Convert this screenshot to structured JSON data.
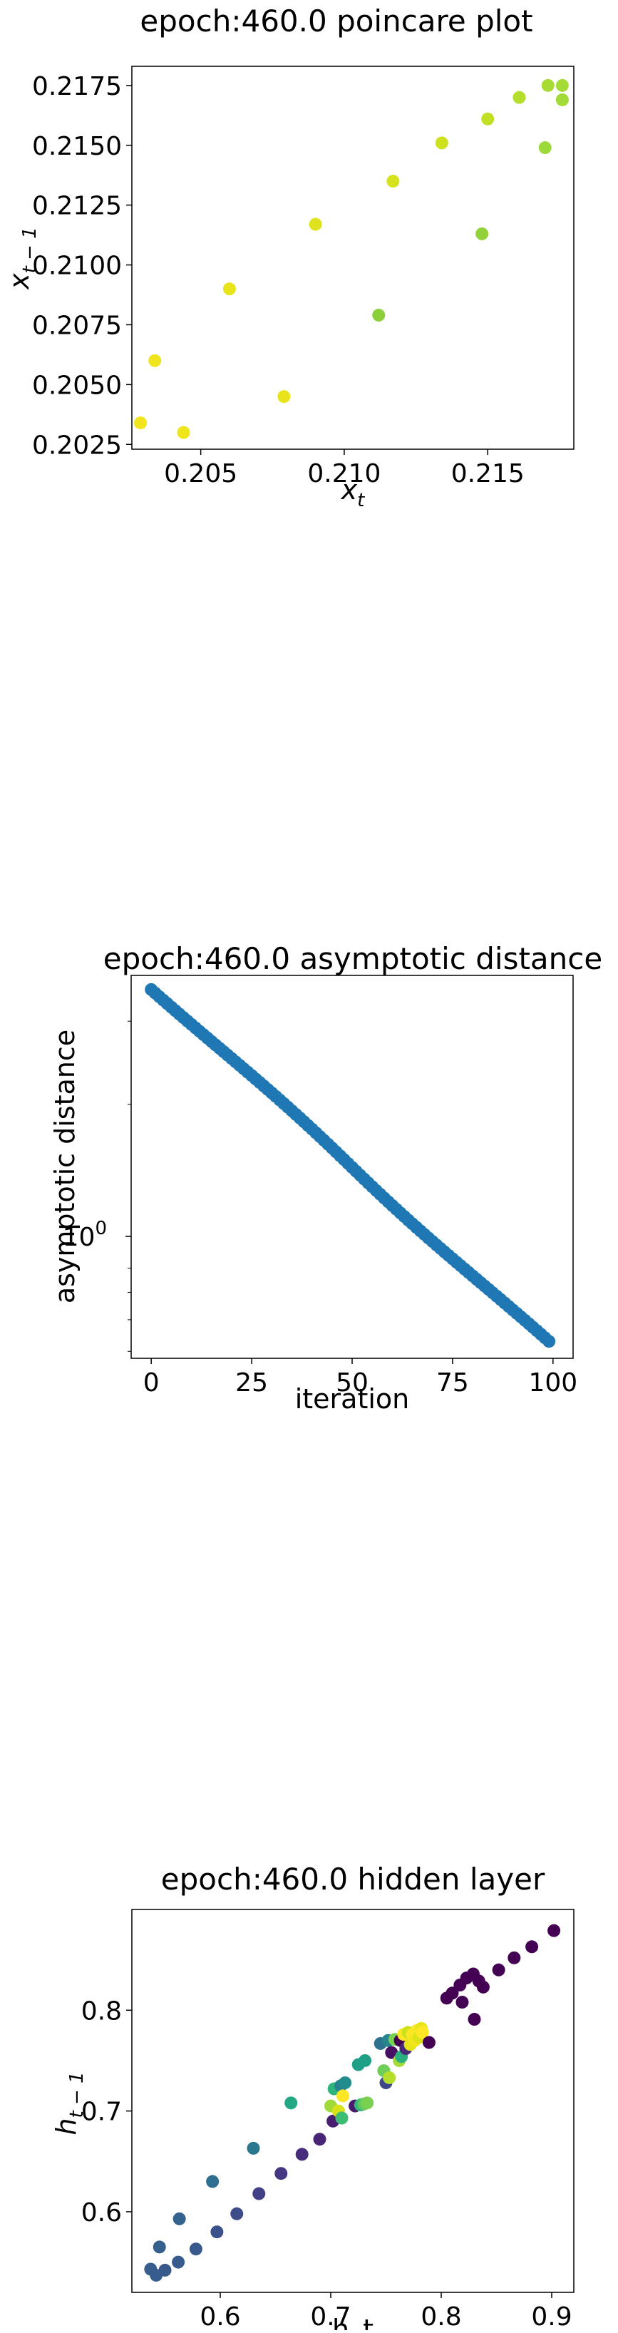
{
  "chart_data": [
    {
      "type": "scatter",
      "title": "epoch:460.0 poincare plot",
      "xlabel": "x_t",
      "ylabel": "x_{t-1}",
      "xlim": [
        0.2026,
        0.218
      ],
      "ylim": [
        0.2023,
        0.2183
      ],
      "xticks": [
        0.205,
        0.21,
        0.215
      ],
      "yticks": [
        0.2025,
        0.205,
        0.2075,
        0.21,
        0.2125,
        0.215,
        0.2175
      ],
      "xtick_labels": [
        "0.205",
        "0.210",
        "0.215"
      ],
      "ytick_labels": [
        "0.2025",
        "0.2050",
        "0.2075",
        "0.2100",
        "0.2125",
        "0.2150",
        "0.2175"
      ],
      "grid": false,
      "points": [
        {
          "x": 0.2029,
          "y": 0.2034,
          "color": "#f2e51e"
        },
        {
          "x": 0.2034,
          "y": 0.206,
          "color": "#f0e41f"
        },
        {
          "x": 0.2044,
          "y": 0.203,
          "color": "#eee51b"
        },
        {
          "x": 0.206,
          "y": 0.209,
          "color": "#e8e41a"
        },
        {
          "x": 0.2079,
          "y": 0.2045,
          "color": "#e8e31a"
        },
        {
          "x": 0.209,
          "y": 0.2117,
          "color": "#dfe21e"
        },
        {
          "x": 0.2112,
          "y": 0.2079,
          "color": "#8ccf3a"
        },
        {
          "x": 0.2117,
          "y": 0.2135,
          "color": "#d6e21b"
        },
        {
          "x": 0.2134,
          "y": 0.2151,
          "color": "#cde11d"
        },
        {
          "x": 0.2148,
          "y": 0.2113,
          "color": "#93d13a"
        },
        {
          "x": 0.215,
          "y": 0.2161,
          "color": "#c1df24"
        },
        {
          "x": 0.2161,
          "y": 0.217,
          "color": "#b5dd2b"
        },
        {
          "x": 0.217,
          "y": 0.2149,
          "color": "#9dd93a"
        },
        {
          "x": 0.2171,
          "y": 0.2175,
          "color": "#a8db34"
        },
        {
          "x": 0.2176,
          "y": 0.2175,
          "color": "#a5db36"
        },
        {
          "x": 0.2176,
          "y": 0.2169,
          "color": "#a2da37"
        }
      ]
    },
    {
      "type": "scatter",
      "title": "epoch:460.0 asymptotic distance",
      "xlabel": "iteration",
      "ylabel": "asymptotic distance",
      "xlim": [
        -5,
        105
      ],
      "ylim": [
        0.58,
        3.75
      ],
      "yscale": "log",
      "xticks": [
        0,
        25,
        50,
        75,
        100
      ],
      "xtick_labels": [
        "0",
        "25",
        "50",
        "75",
        "100"
      ],
      "ytick_labels": [
        "10",
        "0"
      ],
      "grid": false,
      "color": "#1f77b4",
      "n_points": 100,
      "x_range": [
        0,
        99
      ],
      "y_start": 3.5,
      "y_end": 0.63
    },
    {
      "type": "scatter",
      "title": "epoch:460.0 hidden layer",
      "xlabel": "h_t",
      "ylabel": "h_{t-1}",
      "xlim": [
        0.52,
        0.92
      ],
      "ylim": [
        0.52,
        0.9
      ],
      "xticks": [
        0.6,
        0.7,
        0.8,
        0.9
      ],
      "yticks": [
        0.6,
        0.7,
        0.8
      ],
      "xtick_labels": [
        "0.6",
        "0.7",
        "0.8",
        "0.9"
      ],
      "ytick_labels": [
        "0.6",
        "0.7",
        "0.8"
      ],
      "grid": false,
      "points": [
        {
          "x": 0.537,
          "y": 0.543,
          "color": "#365d8d"
        },
        {
          "x": 0.542,
          "y": 0.537,
          "color": "#365d8d"
        },
        {
          "x": 0.545,
          "y": 0.565,
          "color": "#355f8d"
        },
        {
          "x": 0.55,
          "y": 0.542,
          "color": "#37598c"
        },
        {
          "x": 0.562,
          "y": 0.55,
          "color": "#375b8d"
        },
        {
          "x": 0.563,
          "y": 0.593,
          "color": "#33638d"
        },
        {
          "x": 0.578,
          "y": 0.563,
          "color": "#38598c"
        },
        {
          "x": 0.593,
          "y": 0.63,
          "color": "#2e6e8e"
        },
        {
          "x": 0.597,
          "y": 0.58,
          "color": "#3b528b"
        },
        {
          "x": 0.615,
          "y": 0.598,
          "color": "#3e4c8a"
        },
        {
          "x": 0.63,
          "y": 0.663,
          "color": "#2a788e"
        },
        {
          "x": 0.635,
          "y": 0.618,
          "color": "#424086"
        },
        {
          "x": 0.655,
          "y": 0.638,
          "color": "#453781"
        },
        {
          "x": 0.664,
          "y": 0.708,
          "color": "#22a884"
        },
        {
          "x": 0.674,
          "y": 0.657,
          "color": "#472d7b"
        },
        {
          "x": 0.69,
          "y": 0.672,
          "color": "#482576"
        },
        {
          "x": 0.7,
          "y": 0.705,
          "color": "#a0da39"
        },
        {
          "x": 0.702,
          "y": 0.69,
          "color": "#481f70"
        },
        {
          "x": 0.703,
          "y": 0.722,
          "color": "#2fb47c"
        },
        {
          "x": 0.707,
          "y": 0.7,
          "color": "#d8e219"
        },
        {
          "x": 0.709,
          "y": 0.725,
          "color": "#26828e"
        },
        {
          "x": 0.71,
          "y": 0.693,
          "color": "#3dbc74"
        },
        {
          "x": 0.711,
          "y": 0.715,
          "color": "#fde725"
        },
        {
          "x": 0.713,
          "y": 0.728,
          "color": "#228c8d"
        },
        {
          "x": 0.722,
          "y": 0.705,
          "color": "#481a6c"
        },
        {
          "x": 0.725,
          "y": 0.746,
          "color": "#1f9f88"
        },
        {
          "x": 0.727,
          "y": 0.706,
          "color": "#35b779"
        },
        {
          "x": 0.73,
          "y": 0.707,
          "color": "#5ec962"
        },
        {
          "x": 0.731,
          "y": 0.75,
          "color": "#1fa187"
        },
        {
          "x": 0.733,
          "y": 0.708,
          "color": "#7ad151"
        },
        {
          "x": 0.745,
          "y": 0.767,
          "color": "#2c728e"
        },
        {
          "x": 0.748,
          "y": 0.74,
          "color": "#6ece58"
        },
        {
          "x": 0.75,
          "y": 0.728,
          "color": "#3f4788"
        },
        {
          "x": 0.752,
          "y": 0.77,
          "color": "#25848e"
        },
        {
          "x": 0.753,
          "y": 0.733,
          "color": "#b5de2b"
        },
        {
          "x": 0.755,
          "y": 0.758,
          "color": "#471063"
        },
        {
          "x": 0.758,
          "y": 0.771,
          "color": "#7ad151"
        },
        {
          "x": 0.762,
          "y": 0.75,
          "color": "#a5db36"
        },
        {
          "x": 0.763,
          "y": 0.77,
          "color": "#440154"
        },
        {
          "x": 0.764,
          "y": 0.754,
          "color": "#2ab07f"
        },
        {
          "x": 0.766,
          "y": 0.776,
          "color": "#fde725"
        },
        {
          "x": 0.768,
          "y": 0.762,
          "color": "#482878"
        },
        {
          "x": 0.77,
          "y": 0.778,
          "color": "#cde11d"
        },
        {
          "x": 0.772,
          "y": 0.766,
          "color": "#e5e419"
        },
        {
          "x": 0.774,
          "y": 0.776,
          "color": "#fde725"
        },
        {
          "x": 0.776,
          "y": 0.77,
          "color": "#f1e51d"
        },
        {
          "x": 0.778,
          "y": 0.78,
          "color": "#fde725"
        },
        {
          "x": 0.78,
          "y": 0.773,
          "color": "#dde318"
        },
        {
          "x": 0.782,
          "y": 0.782,
          "color": "#eae51a"
        },
        {
          "x": 0.783,
          "y": 0.778,
          "color": "#fde725"
        },
        {
          "x": 0.789,
          "y": 0.768,
          "color": "#440154"
        },
        {
          "x": 0.805,
          "y": 0.812,
          "color": "#440154"
        },
        {
          "x": 0.81,
          "y": 0.817,
          "color": "#440154"
        },
        {
          "x": 0.817,
          "y": 0.825,
          "color": "#450457"
        },
        {
          "x": 0.819,
          "y": 0.808,
          "color": "#440154"
        },
        {
          "x": 0.823,
          "y": 0.832,
          "color": "#440154"
        },
        {
          "x": 0.829,
          "y": 0.836,
          "color": "#440154"
        },
        {
          "x": 0.83,
          "y": 0.791,
          "color": "#440154"
        },
        {
          "x": 0.834,
          "y": 0.829,
          "color": "#440154"
        },
        {
          "x": 0.838,
          "y": 0.823,
          "color": "#440154"
        },
        {
          "x": 0.852,
          "y": 0.84,
          "color": "#440154"
        },
        {
          "x": 0.866,
          "y": 0.852,
          "color": "#440154"
        },
        {
          "x": 0.882,
          "y": 0.863,
          "color": "#440154"
        },
        {
          "x": 0.902,
          "y": 0.879,
          "color": "#440154"
        }
      ]
    }
  ]
}
